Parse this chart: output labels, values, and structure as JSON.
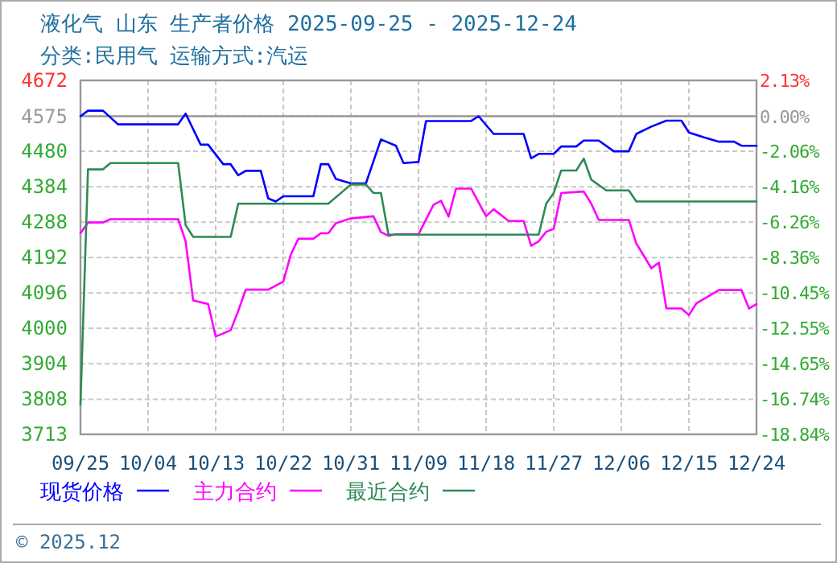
{
  "chart_data": {
    "type": "line",
    "title": "液化气 山东 生产者价格 2025-09-25 - 2025-12-24",
    "subtitle": "分类:民用气 运输方式:汽运",
    "xlim": [
      "2025-09-25",
      "2025-12-24"
    ],
    "xticks": [
      {
        "value": "2025-09-25",
        "label": "09/25"
      },
      {
        "value": "2025-10-04",
        "label": "10/04"
      },
      {
        "value": "2025-10-13",
        "label": "10/13"
      },
      {
        "value": "2025-10-22",
        "label": "10/22"
      },
      {
        "value": "2025-10-31",
        "label": "10/31"
      },
      {
        "value": "2025-11-09",
        "label": "11/09"
      },
      {
        "value": "2025-11-18",
        "label": "11/18"
      },
      {
        "value": "2025-11-27",
        "label": "11/27"
      },
      {
        "value": "2025-12-06",
        "label": "12/06"
      },
      {
        "value": "2025-12-15",
        "label": "12/15"
      },
      {
        "value": "2025-12-24",
        "label": "12/24"
      }
    ],
    "ylim": [
      3713,
      4672
    ],
    "yticks": [
      3713,
      3808,
      3904,
      4000,
      4096,
      4192,
      4288,
      4384,
      4480,
      4575,
      4672
    ],
    "y2lim": [
      -18.84,
      2.13
    ],
    "y2ticks": [
      {
        "value": -18.84,
        "label": "-18.84%"
      },
      {
        "value": -16.74,
        "label": "-16.74%"
      },
      {
        "value": -14.65,
        "label": "-14.65%"
      },
      {
        "value": -12.55,
        "label": "-12.55%"
      },
      {
        "value": -10.45,
        "label": "-10.45%"
      },
      {
        "value": -8.36,
        "label": "-8.36%"
      },
      {
        "value": -6.26,
        "label": "-6.26%"
      },
      {
        "value": -4.16,
        "label": "-4.16%"
      },
      {
        "value": -2.06,
        "label": "-2.06%"
      },
      {
        "value": 0,
        "label": "0.00%"
      },
      {
        "value": 2.13,
        "label": "2.13%"
      }
    ],
    "grid": true,
    "legend": "bottom",
    "line_style": "solid",
    "ref_lines": [
      {
        "axis": "y",
        "value": 4575,
        "color": "#999999"
      }
    ],
    "annotations": [
      "© 2025.12"
    ],
    "series": [
      {
        "name": "现货价格",
        "color": "#0000ff",
        "x": [
          "2025-09-25",
          "2025-09-26",
          "2025-09-28",
          "2025-09-30",
          "2025-10-08",
          "2025-10-09",
          "2025-10-11",
          "2025-10-12",
          "2025-10-14",
          "2025-10-15",
          "2025-10-16",
          "2025-10-17",
          "2025-10-19",
          "2025-10-20",
          "2025-10-21",
          "2025-10-22",
          "2025-10-26",
          "2025-10-27",
          "2025-10-28",
          "2025-10-29",
          "2025-10-31",
          "2025-11-02",
          "2025-11-04",
          "2025-11-06",
          "2025-11-07",
          "2025-11-09",
          "2025-11-10",
          "2025-11-16",
          "2025-11-17",
          "2025-11-19",
          "2025-11-23",
          "2025-11-24",
          "2025-11-25",
          "2025-11-27",
          "2025-11-28",
          "2025-11-30",
          "2025-12-01",
          "2025-12-03",
          "2025-12-05",
          "2025-12-07",
          "2025-12-08",
          "2025-12-10",
          "2025-12-12",
          "2025-12-14",
          "2025-12-15",
          "2025-12-17",
          "2025-12-19",
          "2025-12-21",
          "2025-12-22",
          "2025-12-24"
        ],
        "values": [
          4575,
          4590,
          4590,
          4553,
          4553,
          4582,
          4498,
          4498,
          4445,
          4445,
          4415,
          4427,
          4427,
          4352,
          4344,
          4358,
          4358,
          4445,
          4445,
          4405,
          4393,
          4393,
          4512,
          4495,
          4448,
          4451,
          4562,
          4562,
          4575,
          4527,
          4527,
          4461,
          4473,
          4473,
          4493,
          4493,
          4509,
          4509,
          4480,
          4480,
          4527,
          4547,
          4563,
          4563,
          4531,
          4518,
          4506,
          4506,
          4495,
          4495
        ]
      },
      {
        "name": "主力合约",
        "color": "#ff00ff",
        "x": [
          "2025-09-25",
          "2025-09-26",
          "2025-09-28",
          "2025-09-29",
          "2025-10-08",
          "2025-10-09",
          "2025-10-10",
          "2025-10-12",
          "2025-10-13",
          "2025-10-15",
          "2025-10-16",
          "2025-10-17",
          "2025-10-19",
          "2025-10-20",
          "2025-10-22",
          "2025-10-23",
          "2025-10-24",
          "2025-10-26",
          "2025-10-27",
          "2025-10-28",
          "2025-10-29",
          "2025-10-31",
          "2025-11-03",
          "2025-11-04",
          "2025-11-05",
          "2025-11-06",
          "2025-11-09",
          "2025-11-11",
          "2025-11-12",
          "2025-11-13",
          "2025-11-14",
          "2025-11-16",
          "2025-11-18",
          "2025-11-19",
          "2025-11-21",
          "2025-11-23",
          "2025-11-24",
          "2025-11-25",
          "2025-11-26",
          "2025-11-27",
          "2025-11-28",
          "2025-12-01",
          "2025-12-02",
          "2025-12-03",
          "2025-12-04",
          "2025-12-07",
          "2025-12-08",
          "2025-12-10",
          "2025-12-11",
          "2025-12-12",
          "2025-12-14",
          "2025-12-15",
          "2025-12-16",
          "2025-12-19",
          "2025-12-22",
          "2025-12-23",
          "2025-12-24"
        ],
        "values": [
          4258,
          4287,
          4287,
          4296,
          4296,
          4236,
          4076,
          4066,
          3978,
          3995,
          4047,
          4105,
          4105,
          4105,
          4127,
          4200,
          4243,
          4243,
          4258,
          4258,
          4285,
          4298,
          4304,
          4261,
          4251,
          4255,
          4255,
          4335,
          4346,
          4303,
          4379,
          4379,
          4304,
          4323,
          4291,
          4291,
          4224,
          4236,
          4262,
          4270,
          4367,
          4371,
          4338,
          4294,
          4294,
          4294,
          4230,
          4163,
          4178,
          4054,
          4054,
          4036,
          4068,
          4104,
          4104,
          4054,
          4066
        ]
      },
      {
        "name": "最近合约",
        "color": "#2e8b57",
        "x": [
          "2025-09-25",
          "2025-09-26",
          "2025-09-28",
          "2025-09-29",
          "2025-10-08",
          "2025-10-09",
          "2025-10-10",
          "2025-10-15",
          "2025-10-16",
          "2025-10-28",
          "2025-10-31",
          "2025-11-02",
          "2025-11-03",
          "2025-11-04",
          "2025-11-05",
          "2025-11-25",
          "2025-11-26",
          "2025-11-27",
          "2025-11-28",
          "2025-11-30",
          "2025-12-01",
          "2025-12-02",
          "2025-12-04",
          "2025-12-07",
          "2025-12-08",
          "2025-12-24"
        ],
        "values": [
          3793,
          4431,
          4431,
          4448,
          4448,
          4280,
          4248,
          4248,
          4338,
          4338,
          4390,
          4390,
          4367,
          4367,
          4254,
          4254,
          4338,
          4367,
          4428,
          4428,
          4460,
          4403,
          4374,
          4374,
          4344,
          4344
        ]
      }
    ]
  }
}
